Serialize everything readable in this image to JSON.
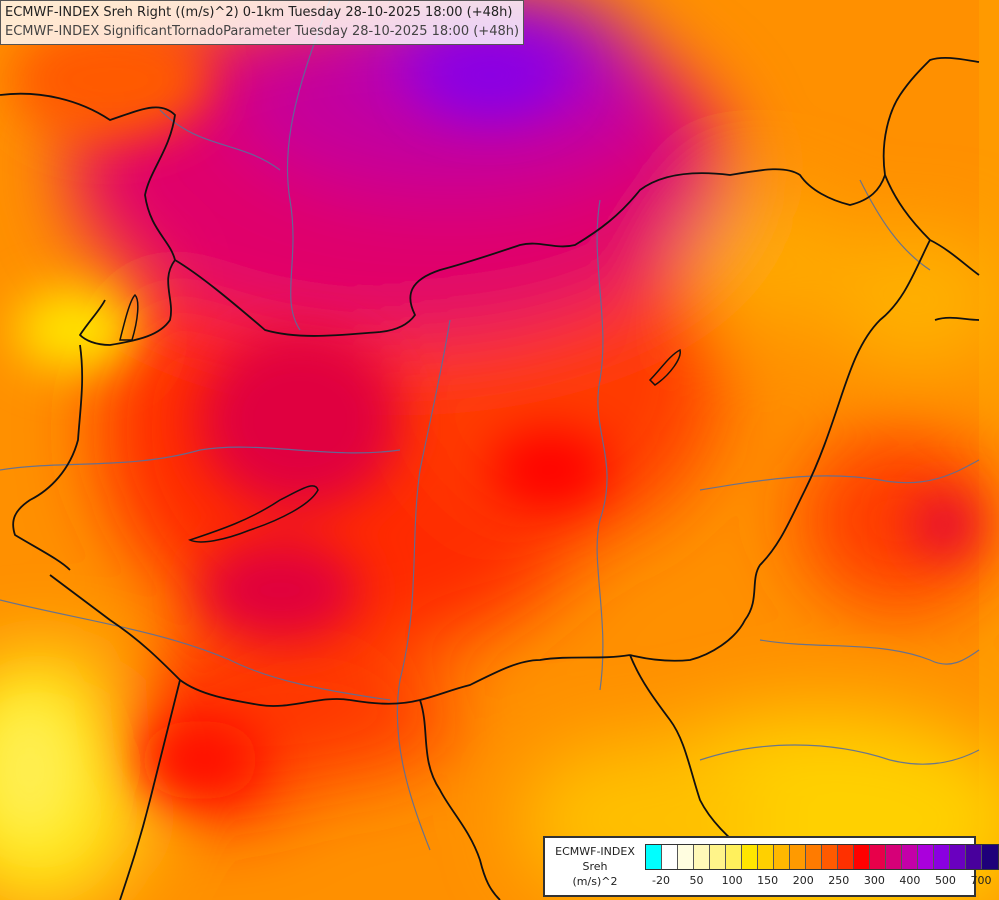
{
  "title": {
    "line1": "ECMWF-INDEX Sreh Right ((m/s)^2) 0-1km Tuesday 28-10-2025 18:00 (+48h)",
    "line2": "ECMWF-INDEX SignificantTornadoParameter Tuesday 28-10-2025 18:00 (+48h)"
  },
  "legend": {
    "label1": "ECMWF-INDEX",
    "label2": "Sreh",
    "label3": "(m/s)^2",
    "colors": [
      "#00ffff",
      "#ffffff",
      "#fffde0",
      "#fff8b8",
      "#fff48a",
      "#fff05c",
      "#ffe600",
      "#ffd000",
      "#ffb800",
      "#ff9a00",
      "#ff7b00",
      "#ff5a00",
      "#ff3000",
      "#ff0000",
      "#e8004a",
      "#d60078",
      "#c400a8",
      "#aa00dc",
      "#8a00e0",
      "#6a00c0",
      "#48009c",
      "#1e007a"
    ],
    "ticks": [
      "-20",
      "50",
      "100",
      "150",
      "200",
      "250",
      "300",
      "400",
      "500",
      "700"
    ]
  }
}
